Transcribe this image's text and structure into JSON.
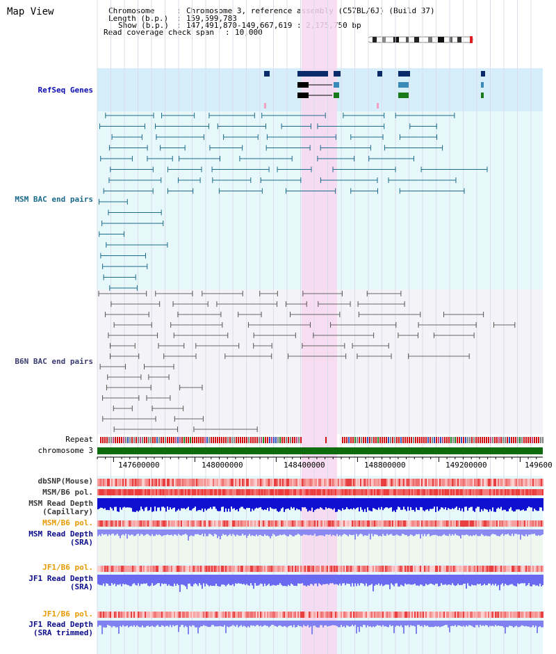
{
  "title": "Map View",
  "info": {
    "chromosome_key": "Chromosome",
    "chromosome_val": "Chromosome 3, reference assembly (C57BL/6J) (Build 37)",
    "length_key": "Length (b.p.)",
    "length_val": "159,599,783",
    "show_key": "Show (b.p.)",
    "show_val": "147,491,870-149,667,619 : 2,175,750 bp",
    "coverage_key": "Read coverage check span",
    "coverage_val": "10,000"
  },
  "tracks": {
    "refseq": "RefSeq Genes",
    "msm_bac": "MSM BAC end pairs",
    "b6n_bac": "B6N BAC end pairs",
    "repeat": "Repeat",
    "chromosome": "chromosome 3",
    "dbsnp": "dbSNP(Mouse)",
    "msm_b6_pol": "MSM/B6 pol.",
    "msm_depth_cap_1": "MSM Read Depth",
    "msm_depth_cap_2": "(Capillary)",
    "msm_b6_pol_sra": "MSM/B6 pol.",
    "msm_depth_sra_1": "MSM Read Depth",
    "msm_depth_sra_2": "(SRA)",
    "jf1_pol": "JF1/B6 pol.",
    "jf1_depth_1": "JF1 Read Depth",
    "jf1_depth_2": "(SRA)",
    "jf1_pol_trim": "JF1/B6 pol.",
    "jf1_trim_1": "JF1 Read Depth",
    "jf1_trim_2": "(SRA trimmed)"
  },
  "axis": {
    "ticks": [
      "147600000",
      "148000000",
      "148400000",
      "148800000",
      "149200000",
      "149600"
    ]
  },
  "colors": {
    "refseq_bg": "#d6eef9",
    "msm_bg": "#e6f8fa",
    "b6n_bg": "#f4f4f8",
    "highlight": "#f8d7f0",
    "refseq_label": "#0b0bb0",
    "msm_label": "#1a6a8a",
    "b6n_label": "#3a3a70",
    "orange_label": "#e89a00",
    "navy_label": "#0b0b8a",
    "chromosome_bar": "#0d6b0d"
  }
}
